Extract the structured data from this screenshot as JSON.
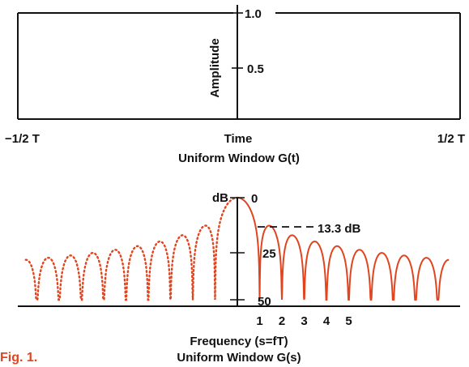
{
  "figure_label": "Fig. 1.",
  "colors": {
    "ink": "#111111",
    "accent": "#e0451f"
  },
  "chart_data": [
    {
      "type": "line",
      "title": "Uniform Window G(t)",
      "xlabel": "Time",
      "ylabel": "Amplitude",
      "x_tick_labels": [
        "−1/2 T",
        "1/2 T"
      ],
      "y_ticks": [
        {
          "value": 0.5,
          "label": "0.5"
        },
        {
          "value": 1.0,
          "label": "1.0"
        }
      ],
      "x": [
        -0.5,
        0.5
      ],
      "y": [
        1.0,
        1.0
      ],
      "ylim": [
        0,
        1.0
      ]
    },
    {
      "type": "line",
      "title": "Uniform Window G(s)",
      "xlabel": "Frequency (s=fT)",
      "ylabel": "dB",
      "x_ticks": [
        1,
        2,
        3,
        4,
        5
      ],
      "y_ticks": [
        {
          "value": 0,
          "label": "0"
        },
        {
          "value": -25,
          "label": "25"
        },
        {
          "value": -50,
          "label": "50"
        }
      ],
      "xlim": [
        -9.5,
        9.5
      ],
      "ylim": [
        -50,
        0
      ],
      "annotation": {
        "text": "13.3 dB",
        "value": -13.3
      },
      "series": [
        {
          "style": "solid",
          "x_range": [
            0,
            9.5
          ]
        },
        {
          "style": "dotted",
          "x_range": [
            -9.5,
            0
          ]
        }
      ]
    }
  ]
}
